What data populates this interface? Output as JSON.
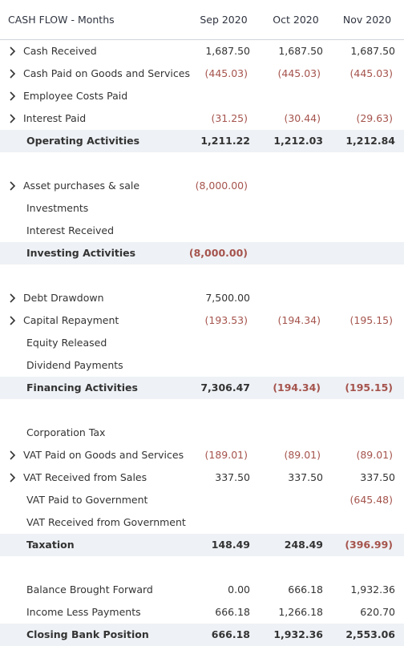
{
  "header": {
    "title": "CASH FLOW - Months",
    "columns": [
      "Sep 2020",
      "Oct 2020",
      "Nov 2020"
    ]
  },
  "sections": [
    {
      "rows": [
        {
          "label": "Cash Received",
          "expandable": true,
          "values": [
            "1,687.50",
            "1,687.50",
            "1,687.50"
          ]
        },
        {
          "label": "Cash Paid on Goods and Services",
          "expandable": true,
          "values": [
            "(445.03)",
            "(445.03)",
            "(445.03)"
          ]
        },
        {
          "label": "Employee Costs Paid",
          "expandable": true,
          "values": [
            null,
            null,
            null
          ]
        },
        {
          "label": "Interest Paid",
          "expandable": true,
          "values": [
            "(31.25)",
            "(30.44)",
            "(29.63)"
          ]
        }
      ],
      "total": {
        "label": "Operating Activities",
        "values": [
          "1,211.22",
          "1,212.03",
          "1,212.84"
        ]
      }
    },
    {
      "rows": [
        {
          "label": "Asset purchases & sale",
          "expandable": true,
          "values": [
            "(8,000.00)",
            null,
            null
          ]
        },
        {
          "label": "Investments",
          "expandable": false,
          "values": [
            null,
            null,
            null
          ]
        },
        {
          "label": "Interest Received",
          "expandable": false,
          "values": [
            null,
            null,
            null
          ]
        }
      ],
      "total": {
        "label": "Investing Activities",
        "values": [
          "(8,000.00)",
          null,
          null
        ]
      }
    },
    {
      "rows": [
        {
          "label": "Debt Drawdown",
          "expandable": true,
          "values": [
            "7,500.00",
            null,
            null
          ]
        },
        {
          "label": "Capital Repayment",
          "expandable": true,
          "values": [
            "(193.53)",
            "(194.34)",
            "(195.15)"
          ]
        },
        {
          "label": "Equity Released",
          "expandable": false,
          "values": [
            null,
            null,
            null
          ]
        },
        {
          "label": "Dividend Payments",
          "expandable": false,
          "values": [
            null,
            null,
            null
          ]
        }
      ],
      "total": {
        "label": "Financing Activities",
        "values": [
          "7,306.47",
          "(194.34)",
          "(195.15)"
        ]
      }
    },
    {
      "rows": [
        {
          "label": "Corporation Tax",
          "expandable": false,
          "values": [
            null,
            null,
            null
          ]
        },
        {
          "label": "VAT Paid on Goods and Services",
          "expandable": true,
          "values": [
            "(189.01)",
            "(89.01)",
            "(89.01)"
          ]
        },
        {
          "label": "VAT Received from Sales",
          "expandable": true,
          "values": [
            "337.50",
            "337.50",
            "337.50"
          ]
        },
        {
          "label": "VAT Paid to Government",
          "expandable": false,
          "values": [
            null,
            null,
            "(645.48)"
          ]
        },
        {
          "label": "VAT Received from Government",
          "expandable": false,
          "values": [
            null,
            null,
            null
          ]
        }
      ],
      "total": {
        "label": "Taxation",
        "values": [
          "148.49",
          "248.49",
          "(396.99)"
        ]
      }
    },
    {
      "rows": [
        {
          "label": "Balance Brought Forward",
          "expandable": false,
          "values": [
            "0.00",
            "666.18",
            "1,932.36"
          ]
        },
        {
          "label": "Income Less Payments",
          "expandable": false,
          "values": [
            "666.18",
            "1,266.18",
            "620.70"
          ]
        }
      ],
      "total": {
        "label": "Closing Bank Position",
        "values": [
          "666.18",
          "1,932.36",
          "2,553.06"
        ]
      }
    }
  ]
}
